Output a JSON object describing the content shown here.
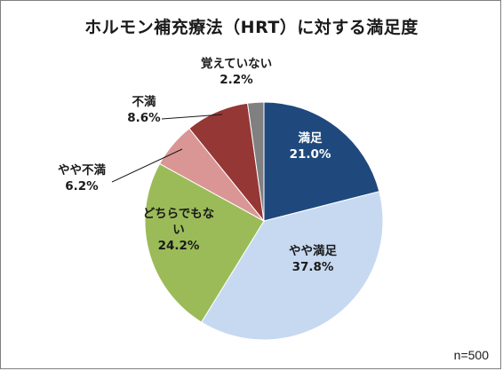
{
  "chart_data": {
    "type": "pie",
    "title": "ホルモン補充療法（HRT）に対する満足度",
    "note": "n=500",
    "slices": [
      {
        "label": "満足",
        "value": 21.0,
        "value_label": "21.0%",
        "color": "#1f497d",
        "label_color": "#ffffff"
      },
      {
        "label": "やや満足",
        "value": 37.8,
        "value_label": "37.8%",
        "color": "#c6d9f1",
        "label_color": "#1a1a1a"
      },
      {
        "label": "どちらでもない",
        "value": 24.2,
        "value_label": "24.2%",
        "color": "#9bbb59",
        "label_color": "#1a1a1a"
      },
      {
        "label": "やや不満",
        "value": 6.2,
        "value_label": "6.2%",
        "color": "#d99694",
        "label_color": "#1a1a1a"
      },
      {
        "label": "不満",
        "value": 8.6,
        "value_label": "8.6%",
        "color": "#953735",
        "label_color": "#1a1a1a"
      },
      {
        "label": "覚えていない",
        "value": 2.2,
        "value_label": "2.2%",
        "color": "#808080",
        "label_color": "#1a1a1a"
      }
    ],
    "start_angle": "12 o'clock",
    "direction": "clockwise",
    "legend": "none"
  }
}
